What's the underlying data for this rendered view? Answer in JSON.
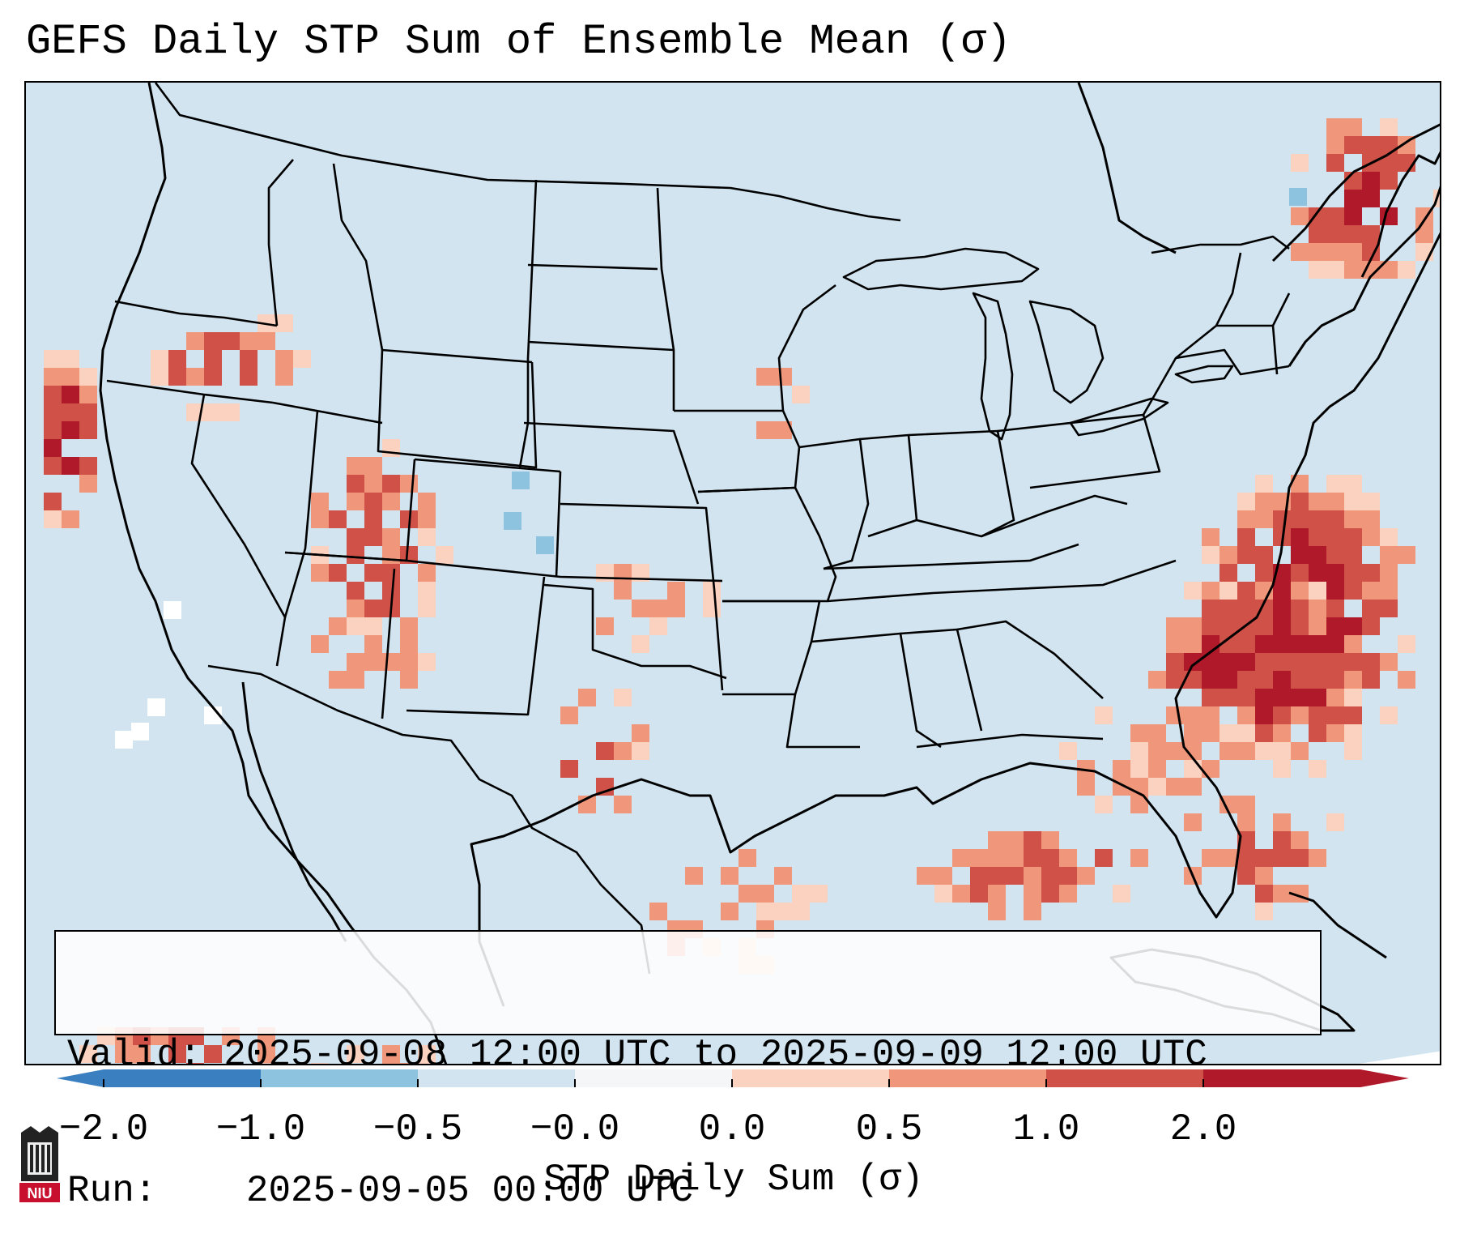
{
  "title": "GEFS Daily STP Sum of Ensemble Mean (σ)",
  "info": {
    "valid_label": "Valid:",
    "valid_value": "2025-09-08 12:00 UTC to 2025-09-09 12:00 UTC",
    "run_label": "Run:",
    "run_value": "2025-09-05 00:00 UTC"
  },
  "colorbar": {
    "label": "STP Daily Sum (σ)",
    "tick_labels": [
      "−2.0",
      "−1.0",
      "−0.5",
      "−0.0",
      "0.0",
      "0.5",
      "1.0",
      "2.0"
    ],
    "colors": [
      "#3a7fbf",
      "#8ec3df",
      "#d1e4ef",
      "#f5f6f7",
      "#fbd2bf",
      "#f0967a",
      "#cf5148",
      "#b0192a"
    ],
    "extend": "both"
  },
  "map": {
    "background": "#d1e4ef",
    "domain": "Continental United States",
    "projection": "Lambert Conformal"
  },
  "logo": {
    "text": "NIU",
    "color": "#b0192a"
  }
}
